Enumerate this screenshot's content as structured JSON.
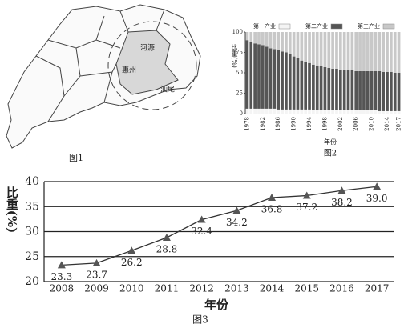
{
  "figure1": {
    "caption": "图1",
    "labels": [
      "河源",
      "惠州",
      "汕尾"
    ]
  },
  "chart_data": [
    {
      "type": "stacked_bar",
      "caption": "图2",
      "y_label": "比重(%)",
      "x_label": "年份",
      "categories": [
        "1978",
        null,
        null,
        null,
        "1982",
        null,
        null,
        null,
        "1986",
        null,
        null,
        null,
        "1990",
        null,
        null,
        null,
        "1994",
        null,
        null,
        null,
        "1998",
        null,
        null,
        null,
        "2002",
        null,
        null,
        null,
        "2006",
        null,
        null,
        null,
        "2010",
        null,
        null,
        null,
        "2014",
        null,
        null,
        "2017"
      ],
      "series": [
        {
          "name": "第一产业",
          "color": "#f4f4f4",
          "values": [
            6,
            6,
            6,
            6,
            6,
            6,
            6,
            6,
            5,
            5,
            5,
            5,
            5,
            5,
            5,
            5,
            5,
            4,
            4,
            4,
            4,
            4,
            4,
            4,
            4,
            4,
            4,
            4,
            4,
            4,
            4,
            4,
            4,
            4,
            3,
            3,
            3,
            3,
            3,
            3
          ]
        },
        {
          "name": "第二产业",
          "color": "#555555",
          "values": [
            84,
            82,
            80,
            79,
            78,
            76,
            74,
            73,
            73,
            71,
            70,
            68,
            65,
            63,
            60,
            58,
            57,
            56,
            55,
            54,
            53,
            52,
            51,
            51,
            50,
            50,
            49,
            49,
            48,
            48,
            48,
            48,
            48,
            48,
            49,
            48,
            48,
            48,
            47,
            47
          ]
        },
        {
          "name": "第三产业",
          "color": "#c8c8c8",
          "values": [
            10,
            12,
            14,
            15,
            16,
            18,
            20,
            21,
            22,
            24,
            25,
            27,
            30,
            32,
            35,
            37,
            38,
            40,
            41,
            42,
            43,
            44,
            45,
            45,
            46,
            46,
            47,
            47,
            48,
            48,
            48,
            48,
            48,
            48,
            48,
            49,
            49,
            49,
            50,
            50
          ]
        }
      ],
      "ylim": [
        0,
        100
      ],
      "yticks": [
        0,
        25,
        50,
        75,
        100
      ]
    },
    {
      "type": "line",
      "caption": "图3",
      "y_label": "比重(%)",
      "x_label": "年份",
      "categories": [
        "2008",
        "2009",
        "2010",
        "2011",
        "2012",
        "2013",
        "2014",
        "2015",
        "2016",
        "2017"
      ],
      "values": [
        23.3,
        23.7,
        26.2,
        28.8,
        32.4,
        34.2,
        36.8,
        37.2,
        38.2,
        39.0
      ],
      "value_labels": [
        "23.3",
        "23.7",
        "26.2",
        "28.8",
        "32.4",
        "34.2",
        "36.8",
        "37.2",
        "38.2",
        "39.0"
      ],
      "color": "#333333",
      "ylim": [
        20,
        40
      ],
      "yticks": [
        20,
        25,
        30,
        35,
        40
      ],
      "grid": true
    }
  ]
}
